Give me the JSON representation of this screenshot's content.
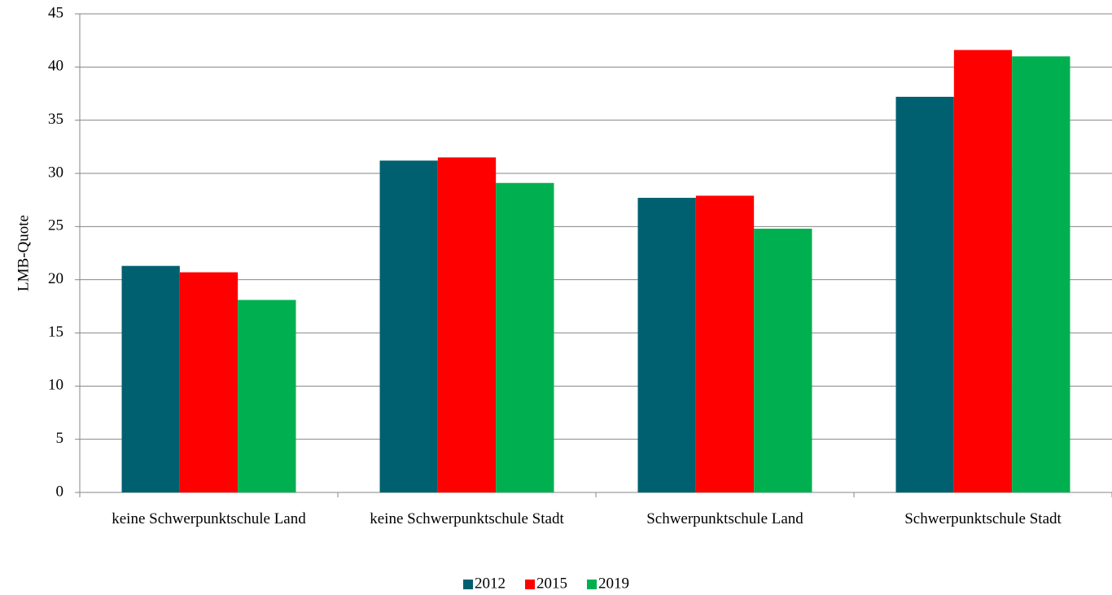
{
  "chart_data": {
    "type": "bar",
    "y_label": "LMB-Quote",
    "categories": [
      "keine Schwerpunktschule Land",
      "keine Schwerpunktschule Stadt",
      "Schwerpunktschule Land",
      "Schwerpunktschule Stadt"
    ],
    "series": [
      {
        "name": "2012",
        "color": "#006070",
        "values": [
          21.3,
          31.2,
          27.7,
          37.2
        ]
      },
      {
        "name": "2015",
        "color": "#ff0000",
        "values": [
          20.7,
          31.5,
          27.9,
          41.6
        ]
      },
      {
        "name": "2019",
        "color": "#00b050",
        "values": [
          18.1,
          29.1,
          24.8,
          41.0
        ]
      }
    ],
    "ylim": [
      0,
      45
    ],
    "yticks": [
      0,
      5,
      10,
      15,
      20,
      25,
      30,
      35,
      40,
      45
    ],
    "grid": true,
    "legend": "bottom"
  }
}
